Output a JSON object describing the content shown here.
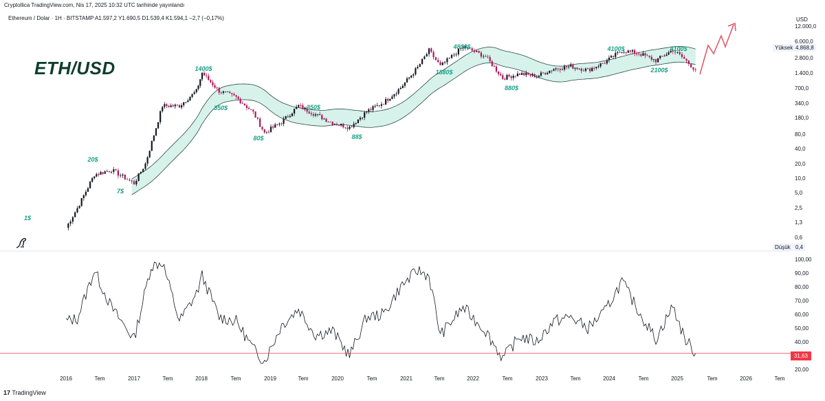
{
  "header": {
    "credit": "Cryptollica TradingView.com, Nis 17, 2025 10:32 UTC tarihinde yayınlandı",
    "symbol_line": "Ethereum / Dolar · 1H · BITSTAMP  A1.597,2  Y1.690,5  D1.539,4  K1.594,1  −2,7 (−0,17%)"
  },
  "title": "ETH/USD",
  "unit": "USD",
  "price_axis": {
    "ticks": [
      "12.000,0",
      "6.000,0",
      "2.800,0",
      "1.400,0",
      "700,0",
      "340,0",
      "180,0",
      "80,0",
      "40,0",
      "20,0",
      "10,0",
      "5,0",
      "2,5",
      "1,3",
      "0,6",
      "0,4"
    ],
    "high_label": "Yüksek",
    "high_value": "4.868,8",
    "low_label": "Düşük",
    "low_value": "0,4"
  },
  "rsi_axis": {
    "ticks": [
      "100,00",
      "90,00",
      "80,00",
      "70,00",
      "60,00",
      "50,00",
      "40,00",
      "20,00"
    ],
    "current_value": "31,63"
  },
  "time_axis": [
    "2016",
    "Tem",
    "2017",
    "Tem",
    "2018",
    "Tem",
    "2019",
    "Tem",
    "2020",
    "Tem",
    "2021",
    "Tem",
    "2022",
    "Tem",
    "2023",
    "Tem",
    "2024",
    "Tem",
    "2025",
    "Tem",
    "2026",
    "Tem"
  ],
  "annotations": [
    "1$",
    "20$",
    "7$",
    "1400$",
    "350$",
    "80$",
    "350$",
    "88$",
    "1880$",
    "4800$",
    "880$",
    "4100$",
    "4100$",
    "2100$"
  ],
  "footer": {
    "brand_prefix": "17",
    "brand": "TradingView"
  },
  "colors": {
    "candle_up": "#131722",
    "candle_down": "#ad1457",
    "band_fill": "#d6f2ea",
    "band_line": "#2a4a40",
    "rsi_line": "#131722",
    "rsi_threshold": "#f23645",
    "projection": "#e05a6b",
    "annotation": "#16a085"
  },
  "chart_data": [
    {
      "type": "line",
      "title": "",
      "xlabel": "",
      "ylabel": "USD",
      "log_scale": true,
      "x": [
        "2016-01",
        "2016-03",
        "2016-06",
        "2016-09",
        "2017-01",
        "2017-03",
        "2017-06",
        "2017-09",
        "2017-12",
        "2018-01",
        "2018-04",
        "2018-07",
        "2018-10",
        "2018-12",
        "2019-03",
        "2019-06",
        "2019-09",
        "2019-12",
        "2020-03",
        "2020-06",
        "2020-09",
        "2020-12",
        "2021-03",
        "2021-05",
        "2021-07",
        "2021-11",
        "2022-03",
        "2022-06",
        "2022-09",
        "2022-12",
        "2023-03",
        "2023-06",
        "2023-09",
        "2023-12",
        "2024-03",
        "2024-06",
        "2024-09",
        "2024-12",
        "2025-02",
        "2025-04"
      ],
      "series": [
        {
          "values": [
            1,
            2.5,
            12,
            15,
            8,
            20,
            300,
            300,
            600,
            1400,
            600,
            450,
            220,
            85,
            140,
            300,
            200,
            135,
            110,
            230,
            350,
            700,
            1800,
            4000,
            1900,
            4800,
            3000,
            1100,
            1350,
            1200,
            1700,
            1900,
            1600,
            2300,
            4000,
            3500,
            2500,
            4100,
            2700,
            1590
          ]
        }
      ],
      "ylim": [
        0.4,
        12000
      ],
      "grid": false
    },
    {
      "type": "line",
      "title": "",
      "xlabel": "",
      "ylabel": "",
      "x": [
        "2016-01",
        "2016-03",
        "2016-06",
        "2016-09",
        "2017-01",
        "2017-04",
        "2017-06",
        "2017-09",
        "2017-12",
        "2018-01",
        "2018-04",
        "2018-07",
        "2018-10",
        "2018-12",
        "2019-03",
        "2019-06",
        "2019-09",
        "2019-12",
        "2020-03",
        "2020-06",
        "2020-09",
        "2020-12",
        "2021-03",
        "2021-05",
        "2021-07",
        "2021-11",
        "2022-03",
        "2022-06",
        "2022-09",
        "2022-12",
        "2023-03",
        "2023-06",
        "2023-09",
        "2023-12",
        "2024-03",
        "2024-06",
        "2024-09",
        "2024-12",
        "2025-02",
        "2025-04"
      ],
      "series": [
        {
          "values": [
            55,
            57,
            92,
            65,
            42,
            95,
            98,
            55,
            75,
            88,
            58,
            55,
            35,
            26,
            52,
            64,
            45,
            48,
            30,
            58,
            60,
            80,
            92,
            88,
            45,
            65,
            48,
            28,
            44,
            40,
            55,
            58,
            50,
            62,
            84,
            62,
            42,
            66,
            43,
            31.63
          ]
        }
      ],
      "ylim": [
        20,
        100
      ],
      "threshold": 31.63,
      "grid": false
    }
  ]
}
